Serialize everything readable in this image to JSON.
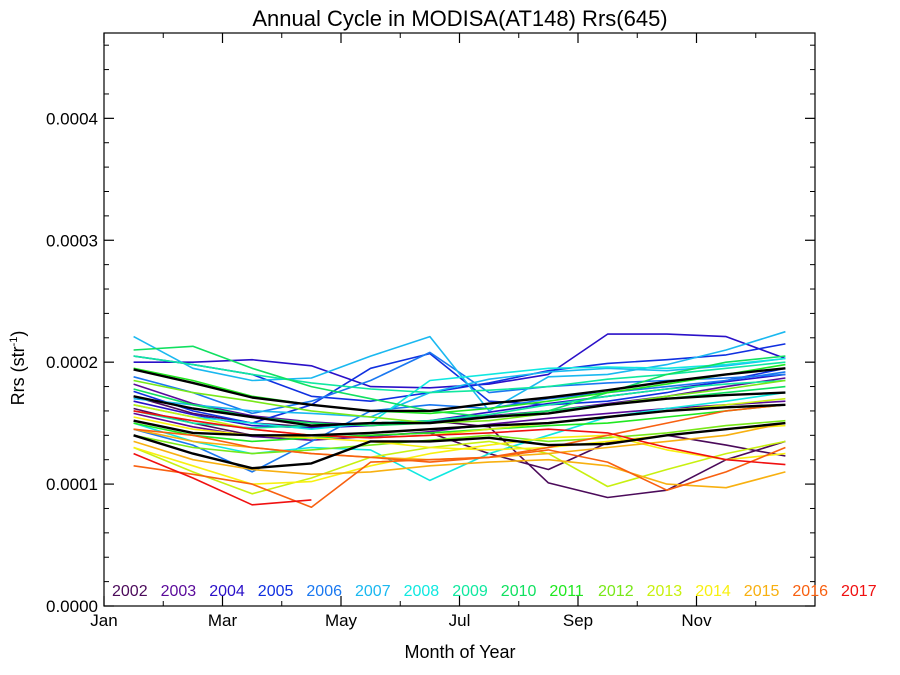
{
  "chart_data": {
    "type": "line",
    "title": "Annual Cycle in MODISA(AT148) Rrs(645)",
    "xlabel": "Month of Year",
    "ylabel_main": "Rrs (str",
    "ylabel_sup": "-1",
    "ylabel_close": ")",
    "xlim": [
      1,
      13
    ],
    "ylim": [
      0,
      0.00047
    ],
    "x_ticks": [
      {
        "value": 1,
        "label": "Jan"
      },
      {
        "value": 3,
        "label": "Mar"
      },
      {
        "value": 5,
        "label": "May"
      },
      {
        "value": 7,
        "label": "Jul"
      },
      {
        "value": 9,
        "label": "Sep"
      },
      {
        "value": 11,
        "label": "Nov"
      }
    ],
    "y_ticks": [
      {
        "value": 0.0,
        "label": "0.0000"
      },
      {
        "value": 0.0001,
        "label": "0.0001"
      },
      {
        "value": 0.0002,
        "label": "0.0002"
      },
      {
        "value": 0.0003,
        "label": "0.0003"
      },
      {
        "value": 0.0004,
        "label": "0.0004"
      }
    ],
    "legend": [
      {
        "label": "2002",
        "color": "#4b0a5a"
      },
      {
        "label": "2003",
        "color": "#5a0a9a"
      },
      {
        "label": "2004",
        "color": "#2a10c8"
      },
      {
        "label": "2005",
        "color": "#1030e0"
      },
      {
        "label": "2006",
        "color": "#1a78f0"
      },
      {
        "label": "2007",
        "color": "#1ab8f0"
      },
      {
        "label": "2008",
        "color": "#10e8e0"
      },
      {
        "label": "2009",
        "color": "#10e8a0"
      },
      {
        "label": "2010",
        "color": "#10e060"
      },
      {
        "label": "2011",
        "color": "#20e820"
      },
      {
        "label": "2012",
        "color": "#78e818"
      },
      {
        "label": "2013",
        "color": "#c8f010"
      },
      {
        "label": "2014",
        "color": "#f8f010"
      },
      {
        "label": "2015",
        "color": "#f8b010"
      },
      {
        "label": "2016",
        "color": "#f86010"
      },
      {
        "label": "2017",
        "color": "#f01010"
      }
    ],
    "series": [
      {
        "color": "#4b0a5a",
        "values": [
          0.000172,
          0.000158,
          0.00015,
          0.000147,
          0.00015,
          0.000152,
          0.000147,
          0.000101,
          8.9e-05,
          9.5e-05,
          0.00012,
          0.000135
        ]
      },
      {
        "color": "#4b0a5a",
        "values": [
          0.000162,
          0.00015,
          0.00014,
          0.000138,
          0.00014,
          0.000142,
          0.000125,
          0.000112,
          0.000134,
          0.00014,
          0.000132,
          0.000123
        ]
      },
      {
        "color": "#5a0a9a",
        "values": [
          0.000182,
          0.000166,
          0.000156,
          0.000151,
          0.000148,
          0.000151,
          0.000156,
          0.00016,
          0.000166,
          0.000172,
          0.00018,
          0.000187
        ]
      },
      {
        "color": "#5a0a9a",
        "values": [
          0.000158,
          0.000147,
          0.000139,
          0.000136,
          0.000139,
          0.000143,
          0.000149,
          0.000154,
          0.000158,
          0.000162,
          0.000165,
          0.000168
        ]
      },
      {
        "color": "#2a10c8",
        "values": [
          0.0002,
          0.0002,
          0.000202,
          0.000197,
          0.00018,
          0.000179,
          0.000182,
          0.00019,
          0.000223,
          0.000223,
          0.000221,
          0.000203
        ]
      },
      {
        "color": "#2a10c8",
        "values": [
          0.000168,
          0.000157,
          0.000148,
          0.000146,
          0.000148,
          0.000152,
          0.000159,
          0.000166,
          0.000172,
          0.000178,
          0.000184,
          0.00019
        ]
      },
      {
        "color": "#1030e0",
        "values": [
          0.000205,
          0.000198,
          0.00019,
          0.000172,
          0.000168,
          0.000175,
          0.000183,
          0.000193,
          0.000199,
          0.000202,
          0.000206,
          0.000215
        ]
      },
      {
        "color": "#1030e0",
        "values": [
          0.000176,
          0.00016,
          0.00015,
          0.000165,
          0.000195,
          0.000207,
          0.000168,
          0.000165,
          0.000168,
          0.000175,
          0.000185,
          0.000195
        ]
      },
      {
        "color": "#1a78f0",
        "values": [
          0.000188,
          0.000175,
          0.000158,
          0.000168,
          0.000185,
          0.000208,
          0.000175,
          0.00018,
          0.000183,
          0.000185,
          0.000187,
          0.00019
        ]
      },
      {
        "color": "#1a78f0",
        "values": [
          0.000145,
          0.000132,
          0.00011,
          0.000135,
          0.00016,
          0.000165,
          0.000162,
          0.00017,
          0.000175,
          0.00018,
          0.000185,
          0.000192
        ]
      },
      {
        "color": "#1ab8f0",
        "values": [
          0.000221,
          0.000195,
          0.000185,
          0.000187,
          0.000205,
          0.000221,
          0.00016,
          0.000188,
          0.00019,
          0.000198,
          0.00021,
          0.000225
        ]
      },
      {
        "color": "#1ab8f0",
        "values": [
          0.00017,
          0.000165,
          0.00016,
          0.000158,
          0.000155,
          0.000175,
          0.000186,
          0.000192,
          0.000195,
          0.000193,
          0.000197,
          0.000203
        ]
      },
      {
        "color": "#10e8e0",
        "values": [
          0.00015,
          0.000135,
          0.000125,
          0.00013,
          0.000128,
          0.000103,
          0.000125,
          0.00014,
          0.000155,
          0.000162,
          0.000168,
          0.000175
        ]
      },
      {
        "color": "#10e8e0",
        "values": [
          0.000165,
          0.000155,
          0.00015,
          0.000145,
          0.00015,
          0.000185,
          0.00019,
          0.000195,
          0.000196,
          0.000195,
          0.000198,
          0.000203
        ]
      },
      {
        "color": "#10e8a0",
        "values": [
          0.000205,
          0.000198,
          0.00019,
          0.000183,
          0.000178,
          0.000175,
          0.000177,
          0.00018,
          0.000186,
          0.00019,
          0.000195,
          0.0002
        ]
      },
      {
        "color": "#10e8a0",
        "values": [
          0.00016,
          0.00015,
          0.000146,
          0.000148,
          0.00015,
          0.000152,
          0.000157,
          0.000165,
          0.000172,
          0.000178,
          0.000182,
          0.000185
        ]
      },
      {
        "color": "#10e060",
        "values": [
          0.00021,
          0.000213,
          0.000195,
          0.00018,
          0.00017,
          0.00016,
          0.000155,
          0.00016,
          0.000175,
          0.00019,
          0.0002,
          0.000205
        ]
      },
      {
        "color": "#10e060",
        "values": [
          0.000178,
          0.000165,
          0.000155,
          0.00015,
          0.000148,
          0.00015,
          0.000155,
          0.00016,
          0.000165,
          0.00017,
          0.000175,
          0.00018
        ]
      },
      {
        "color": "#20e820",
        "values": [
          0.000195,
          0.000185,
          0.000172,
          0.000165,
          0.00016,
          0.000158,
          0.000162,
          0.000168,
          0.000175,
          0.000182,
          0.00019,
          0.000198
        ]
      },
      {
        "color": "#20e820",
        "values": [
          0.00015,
          0.00014,
          0.000135,
          0.000138,
          0.00014,
          0.000142,
          0.000145,
          0.000148,
          0.00015,
          0.000155,
          0.00016,
          0.000165
        ]
      },
      {
        "color": "#78e818",
        "values": [
          0.000185,
          0.000175,
          0.000168,
          0.00016,
          0.000155,
          0.00015,
          0.000152,
          0.000158,
          0.000165,
          0.000172,
          0.000178,
          0.000185
        ]
      },
      {
        "color": "#78e818",
        "values": [
          0.00014,
          0.00013,
          0.000125,
          0.000128,
          0.000132,
          0.000136,
          0.00014,
          0.000135,
          0.000138,
          0.000142,
          0.000148,
          0.000152
        ]
      },
      {
        "color": "#c8f010",
        "values": [
          0.00013,
          0.00011,
          9.2e-05,
          0.000105,
          0.000122,
          0.00013,
          0.000135,
          0.000125,
          9.8e-05,
          0.000112,
          0.000125,
          0.000135
        ]
      },
      {
        "color": "#c8f010",
        "values": [
          0.000165,
          0.000155,
          0.000145,
          0.00014,
          0.000138,
          0.00014,
          0.000145,
          0.00015,
          0.000155,
          0.00016,
          0.000165,
          0.00017
        ]
      },
      {
        "color": "#f8f010",
        "values": [
          0.00013,
          0.000115,
          0.0001,
          0.000102,
          0.000115,
          0.000125,
          0.000132,
          0.000138,
          0.00014,
          0.000128,
          0.00012,
          0.000125
        ]
      },
      {
        "color": "#f8f010",
        "values": [
          0.000155,
          0.000145,
          0.00014,
          0.000138,
          0.000135,
          0.00013,
          0.000128,
          0.00013,
          0.000135,
          0.00014,
          0.000145,
          0.000148
        ]
      },
      {
        "color": "#f8b010",
        "values": [
          0.000135,
          0.00012,
          0.000112,
          0.000108,
          0.00011,
          0.000115,
          0.000118,
          0.00012,
          0.000115,
          0.0001,
          9.7e-05,
          0.00011
        ]
      },
      {
        "color": "#f8b010",
        "values": [
          0.000145,
          0.000135,
          0.00013,
          0.000125,
          0.000122,
          0.00012,
          0.000122,
          0.000125,
          0.00013,
          0.000135,
          0.00014,
          0.00015
        ]
      },
      {
        "color": "#f86010",
        "values": [
          0.000115,
          0.000108,
          0.0001,
          8.1e-05,
          0.000118,
          0.00012,
          0.000122,
          0.000128,
          0.000118,
          9.5e-05,
          0.00011,
          0.00013
        ]
      },
      {
        "color": "#f86010",
        "values": [
          0.000145,
          0.00014,
          0.00013,
          0.000125,
          0.000122,
          0.000118,
          0.000122,
          0.00013,
          0.00014,
          0.00015,
          0.00016,
          0.000165
        ]
      },
      {
        "color": "#f01010",
        "values": [
          0.000125,
          0.000105,
          8.3e-05,
          8.7e-05,
          null,
          null,
          null,
          null,
          null,
          null,
          null,
          null
        ]
      },
      {
        "color": "#f01010",
        "values": [
          0.00016,
          0.000152,
          0.000145,
          0.00014,
          0.000138,
          0.00014,
          0.000142,
          0.000145,
          0.000142,
          0.00013,
          0.00012,
          0.000116
        ]
      },
      {
        "color": "#000000",
        "width": 2.4,
        "values": [
          0.000194,
          0.000183,
          0.000171,
          0.000165,
          0.00016,
          0.00016,
          0.000166,
          0.000171,
          0.000177,
          0.000184,
          0.00019,
          0.000195
        ]
      },
      {
        "color": "#000000",
        "width": 2.4,
        "values": [
          0.000172,
          0.000162,
          0.000155,
          0.000148,
          0.00015,
          0.00015,
          0.000155,
          0.000158,
          0.000165,
          0.00017,
          0.000173,
          0.000175
        ]
      },
      {
        "color": "#000000",
        "width": 2.4,
        "values": [
          0.000152,
          0.000142,
          0.00014,
          0.00014,
          0.000142,
          0.000145,
          0.000148,
          0.00015,
          0.000155,
          0.00016,
          0.000163,
          0.000165
        ]
      },
      {
        "color": "#000000",
        "width": 2.4,
        "values": [
          0.00014,
          0.000125,
          0.000113,
          0.000117,
          0.000135,
          0.000135,
          0.000138,
          0.000132,
          0.000133,
          0.00014,
          0.000145,
          0.00015
        ]
      }
    ]
  }
}
